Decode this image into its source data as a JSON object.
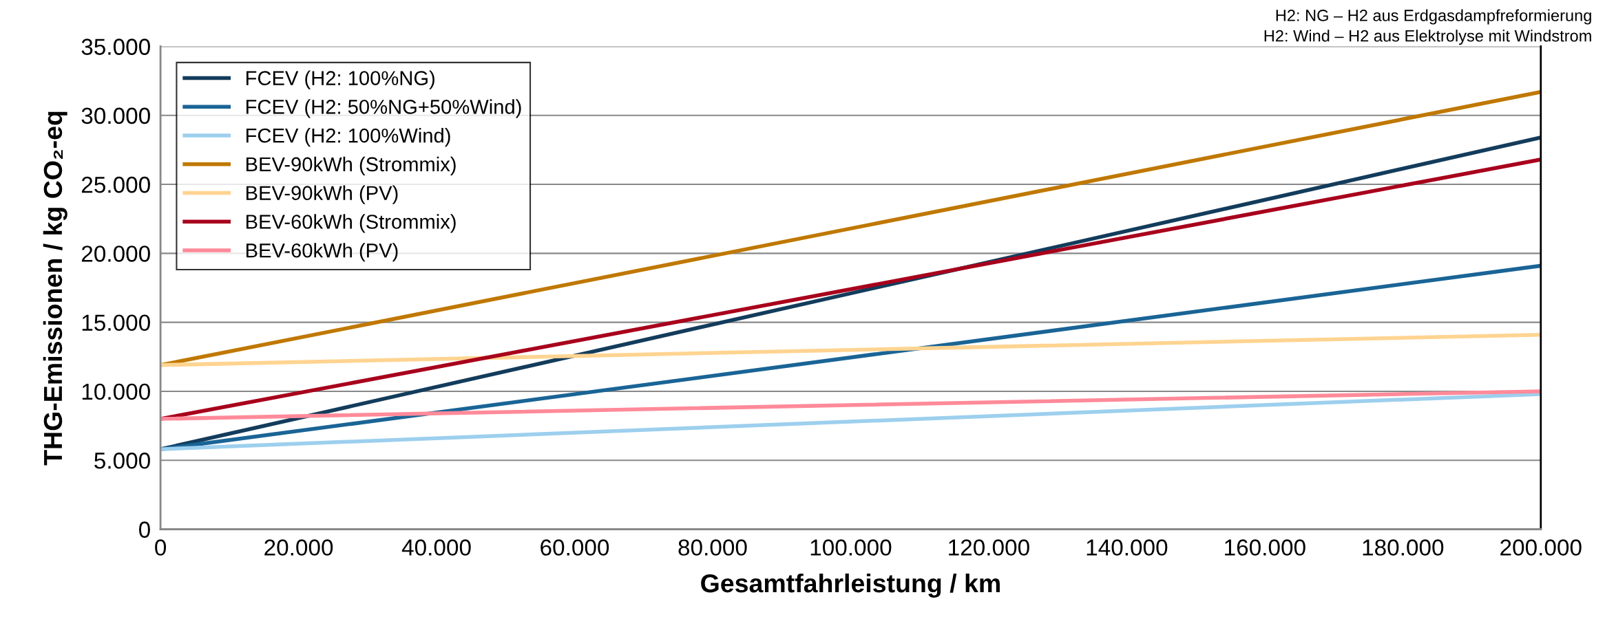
{
  "chart_data": {
    "type": "line",
    "xlabel": "Gesamtfahrleistung / km",
    "ylabel": "THG-Emissionen / kg CO₂-eq",
    "annotations": [
      "H2: NG – H2 aus Erdgasdampfreformierung",
      "H2: Wind – H2 aus Elektrolyse mit Windstrom"
    ],
    "x": [
      0,
      200000
    ],
    "series": [
      {
        "name": "FCEV (H2: 100%NG)",
        "color": "#133c5c",
        "values": [
          5800,
          28400
        ]
      },
      {
        "name": "FCEV (H2: 50%NG+50%Wind)",
        "color": "#1a6496",
        "values": [
          5800,
          19100
        ]
      },
      {
        "name": "FCEV (H2: 100%Wind)",
        "color": "#9dcfee",
        "values": [
          5800,
          9800
        ]
      },
      {
        "name": "BEV-90kWh (Strommix)",
        "color": "#c07800",
        "values": [
          11900,
          31700
        ]
      },
      {
        "name": "BEV-90kWh (PV)",
        "color": "#ffd491",
        "values": [
          11900,
          14100
        ]
      },
      {
        "name": "BEV-60kWh (Strommix)",
        "color": "#a8001c",
        "values": [
          8000,
          26800
        ]
      },
      {
        "name": "BEV-60kWh (PV)",
        "color": "#ff8a99",
        "values": [
          8000,
          10000
        ]
      }
    ],
    "xlim": [
      0,
      200000
    ],
    "ylim": [
      0,
      35000
    ],
    "xticks": [
      {
        "value": 0,
        "label": "0"
      },
      {
        "value": 20000,
        "label": "20.000"
      },
      {
        "value": 40000,
        "label": "40.000"
      },
      {
        "value": 60000,
        "label": "60.000"
      },
      {
        "value": 80000,
        "label": "80.000"
      },
      {
        "value": 100000,
        "label": "100.000"
      },
      {
        "value": 120000,
        "label": "120.000"
      },
      {
        "value": 140000,
        "label": "140.000"
      },
      {
        "value": 160000,
        "label": "160.000"
      },
      {
        "value": 180000,
        "label": "180.000"
      },
      {
        "value": 200000,
        "label": "200.000"
      }
    ],
    "yticks": [
      {
        "value": 0,
        "label": "0"
      },
      {
        "value": 5000,
        "label": "5.000"
      },
      {
        "value": 10000,
        "label": "10.000"
      },
      {
        "value": 15000,
        "label": "15.000"
      },
      {
        "value": 20000,
        "label": "20.000"
      },
      {
        "value": 25000,
        "label": "25.000"
      },
      {
        "value": 30000,
        "label": "30.000"
      },
      {
        "value": 35000,
        "label": "35.000"
      }
    ],
    "grid": "y",
    "legend": "top left",
    "marker": "none",
    "line_style": "solid"
  }
}
